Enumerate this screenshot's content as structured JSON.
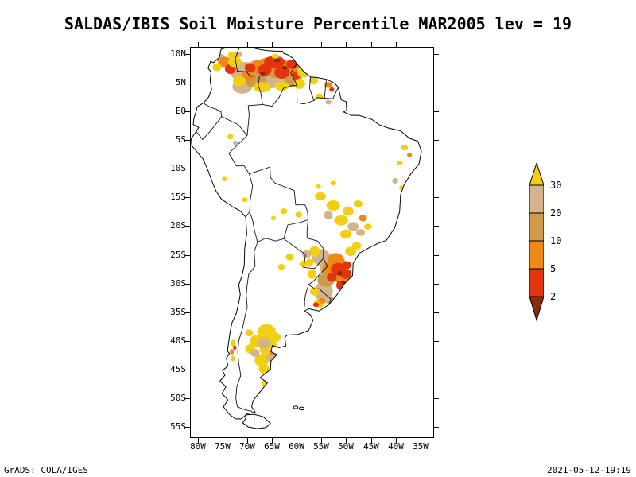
{
  "title": "SALDAS/IBIS Soil Moisture Percentile MAR2005 lev = 19",
  "footer": {
    "credit": "GrADS: COLA/IGES",
    "timestamp": "2021-05-12-19:19"
  },
  "axes": {
    "lat_ticks": [
      {
        "label": "10N",
        "deg": 10
      },
      {
        "label": "5N",
        "deg": 5
      },
      {
        "label": "EQ",
        "deg": 0
      },
      {
        "label": "5S",
        "deg": -5
      },
      {
        "label": "10S",
        "deg": -10
      },
      {
        "label": "15S",
        "deg": -15
      },
      {
        "label": "20S",
        "deg": -20
      },
      {
        "label": "25S",
        "deg": -25
      },
      {
        "label": "30S",
        "deg": -30
      },
      {
        "label": "35S",
        "deg": -35
      },
      {
        "label": "40S",
        "deg": -40
      },
      {
        "label": "45S",
        "deg": -45
      },
      {
        "label": "50S",
        "deg": -50
      },
      {
        "label": "55S",
        "deg": -55
      }
    ],
    "lon_ticks": [
      {
        "label": "80W",
        "deg": -80
      },
      {
        "label": "75W",
        "deg": -75
      },
      {
        "label": "70W",
        "deg": -70
      },
      {
        "label": "65W",
        "deg": -65
      },
      {
        "label": "60W",
        "deg": -60
      },
      {
        "label": "55W",
        "deg": -55
      },
      {
        "label": "50W",
        "deg": -50
      },
      {
        "label": "45W",
        "deg": -45
      },
      {
        "label": "40W",
        "deg": -40
      },
      {
        "label": "35W",
        "deg": -35
      }
    ]
  },
  "legend": {
    "boundary_labels": [
      "30",
      "20",
      "10",
      "5",
      "2"
    ],
    "colors": {
      "above30": "#f2cf12",
      "p20_30": "#d3b48c",
      "p10_20": "#cd9b4a",
      "p5_10": "#f08818",
      "p2_5": "#e4340e",
      "below2": "#8c2a0c"
    }
  },
  "map_patches": [
    [
      -66.5,
      6.5,
      5.0,
      2.6,
      "p20_30"
    ],
    [
      -62.0,
      6.3,
      3.2,
      2.2,
      "p20_30"
    ],
    [
      -70.5,
      6.8,
      2.8,
      1.8,
      "p20_30"
    ],
    [
      -71.0,
      4.3,
      2.0,
      1.2,
      "p20_30"
    ],
    [
      -71.8,
      9.9,
      0.9,
      0.5,
      "p20_30"
    ],
    [
      -75.6,
      9.4,
      1.1,
      0.7,
      "p20_30"
    ],
    [
      -64.0,
      7.5,
      3.0,
      1.7,
      "p10_20"
    ],
    [
      -68.5,
      5.6,
      2.4,
      1.4,
      "p10_20"
    ],
    [
      -60.8,
      5.5,
      1.6,
      1.2,
      "p10_20"
    ],
    [
      -65.5,
      8.2,
      2.4,
      1.2,
      "p5_10"
    ],
    [
      -61.5,
      7.5,
      1.9,
      1.4,
      "p5_10"
    ],
    [
      -67.8,
      7.8,
      1.5,
      1.1,
      "p5_10"
    ],
    [
      -69.8,
      6.2,
      1.3,
      0.9,
      "p5_10"
    ],
    [
      -74.5,
      8.6,
      1.4,
      0.9,
      "p5_10"
    ],
    [
      -64.5,
      8.6,
      2.1,
      1.1,
      "p2_5"
    ],
    [
      -63.0,
      6.8,
      1.5,
      1.1,
      "p2_5"
    ],
    [
      -66.5,
      7.2,
      1.4,
      1.0,
      "p2_5"
    ],
    [
      -61.0,
      8.2,
      1.1,
      0.8,
      "p2_5"
    ],
    [
      -69.4,
      7.6,
      1.1,
      0.8,
      "p2_5"
    ],
    [
      -60.1,
      6.3,
      0.9,
      0.7,
      "p2_5"
    ],
    [
      -73.4,
      7.4,
      1.1,
      0.9,
      "p2_5"
    ],
    [
      -64.0,
      8.9,
      0.6,
      0.35,
      "below2"
    ],
    [
      -62.4,
      7.6,
      0.5,
      0.35,
      "below2"
    ],
    [
      -66.9,
      6.6,
      0.5,
      0.35,
      "below2"
    ],
    [
      -72.5,
      8.6,
      1.4,
      0.9,
      "above30"
    ],
    [
      -58.6,
      7.0,
      1.4,
      1.1,
      "above30"
    ],
    [
      -59.4,
      4.8,
      1.1,
      0.9,
      "above30"
    ],
    [
      -67.0,
      4.2,
      1.8,
      0.9,
      "above30"
    ],
    [
      -71.6,
      5.3,
      1.3,
      0.9,
      "above30"
    ],
    [
      -63.0,
      4.4,
      1.4,
      0.8,
      "above30"
    ],
    [
      -56.6,
      5.4,
      0.9,
      0.7,
      "above30"
    ],
    [
      -76.1,
      7.7,
      0.9,
      0.7,
      "above30"
    ],
    [
      -73.0,
      9.8,
      0.9,
      0.6,
      "above30"
    ],
    [
      -64.3,
      9.6,
      0.8,
      0.4,
      "above30"
    ],
    [
      -53.6,
      4.6,
      0.8,
      0.5,
      "p5_10"
    ],
    [
      -52.9,
      3.8,
      0.5,
      0.4,
      "p2_5"
    ],
    [
      -55.4,
      2.6,
      0.8,
      0.5,
      "above30"
    ],
    [
      -53.6,
      1.6,
      0.6,
      0.4,
      "p20_30"
    ],
    [
      -73.4,
      -4.4,
      0.6,
      0.5,
      "above30"
    ],
    [
      -72.4,
      -5.5,
      0.5,
      0.4,
      "p20_30"
    ],
    [
      -74.6,
      -11.8,
      0.5,
      0.4,
      "above30"
    ],
    [
      -70.5,
      -15.4,
      0.6,
      0.4,
      "above30"
    ],
    [
      -38.2,
      -6.3,
      0.7,
      0.5,
      "above30"
    ],
    [
      -37.2,
      -7.6,
      0.5,
      0.4,
      "p5_10"
    ],
    [
      -39.2,
      -9.0,
      0.6,
      0.4,
      "above30"
    ],
    [
      -40.1,
      -12.1,
      0.6,
      0.5,
      "p20_30"
    ],
    [
      -38.8,
      -13.3,
      0.5,
      0.4,
      "above30"
    ],
    [
      -59.6,
      -18.0,
      0.7,
      0.5,
      "above30"
    ],
    [
      -62.6,
      -17.4,
      0.7,
      0.5,
      "above30"
    ],
    [
      -64.7,
      -18.6,
      0.5,
      0.4,
      "above30"
    ],
    [
      -55.2,
      -14.8,
      1.1,
      0.7,
      "above30"
    ],
    [
      -52.6,
      -16.4,
      1.4,
      0.9,
      "above30"
    ],
    [
      -49.6,
      -17.4,
      1.1,
      0.8,
      "above30"
    ],
    [
      -47.6,
      -16.1,
      0.9,
      0.6,
      "above30"
    ],
    [
      -51.0,
      -19.0,
      1.4,
      0.9,
      "above30"
    ],
    [
      -48.6,
      -20.1,
      1.1,
      0.8,
      "p20_30"
    ],
    [
      -46.6,
      -18.6,
      0.8,
      0.6,
      "p5_10"
    ],
    [
      -53.6,
      -18.1,
      0.9,
      0.7,
      "p20_30"
    ],
    [
      -50.1,
      -21.4,
      1.1,
      0.8,
      "above30"
    ],
    [
      -47.1,
      -21.1,
      0.9,
      0.6,
      "p20_30"
    ],
    [
      -45.6,
      -20.1,
      0.8,
      0.5,
      "above30"
    ],
    [
      -52.6,
      -12.5,
      0.6,
      0.4,
      "above30"
    ],
    [
      -55.6,
      -13.1,
      0.5,
      0.4,
      "above30"
    ],
    [
      -52.6,
      -27.0,
      2.8,
      2.1,
      "p20_30"
    ],
    [
      -55.1,
      -25.4,
      1.9,
      1.4,
      "p20_30"
    ],
    [
      -54.6,
      -31.4,
      1.9,
      1.7,
      "p20_30"
    ],
    [
      -51.6,
      -28.4,
      1.9,
      1.4,
      "p10_20"
    ],
    [
      -54.1,
      -29.4,
      1.7,
      1.2,
      "p10_20"
    ],
    [
      -52.1,
      -25.9,
      1.7,
      1.2,
      "p5_10"
    ],
    [
      -50.6,
      -29.4,
      1.4,
      1.1,
      "p5_10"
    ],
    [
      -53.6,
      -27.4,
      1.2,
      1.0,
      "p5_10"
    ],
    [
      -51.6,
      -27.5,
      1.5,
      1.1,
      "p2_5"
    ],
    [
      -50.1,
      -28.3,
      1.2,
      0.9,
      "p2_5"
    ],
    [
      -52.9,
      -28.9,
      1.0,
      0.8,
      "p2_5"
    ],
    [
      -51.1,
      -30.3,
      0.9,
      0.8,
      "p2_5"
    ],
    [
      -49.9,
      -26.8,
      0.9,
      0.7,
      "p2_5"
    ],
    [
      -51.3,
      -28.2,
      0.5,
      0.4,
      "below2"
    ],
    [
      -50.6,
      -29.8,
      0.4,
      0.35,
      "below2"
    ],
    [
      -56.4,
      -24.4,
      1.1,
      0.9,
      "above30"
    ],
    [
      -49.1,
      -24.4,
      1.1,
      0.8,
      "above30"
    ],
    [
      -47.9,
      -23.4,
      0.9,
      0.7,
      "above30"
    ],
    [
      -56.9,
      -28.4,
      0.9,
      0.8,
      "above30"
    ],
    [
      -57.4,
      -26.4,
      0.8,
      0.7,
      "above30"
    ],
    [
      -55.4,
      -33.4,
      1.1,
      0.8,
      "above30"
    ],
    [
      -53.6,
      -32.7,
      1.1,
      0.8,
      "p20_30"
    ],
    [
      -56.4,
      -31.4,
      0.9,
      0.7,
      "above30"
    ],
    [
      -56.1,
      -33.7,
      0.6,
      0.4,
      "p2_5"
    ],
    [
      -54.9,
      -33.0,
      0.7,
      0.5,
      "p5_10"
    ],
    [
      -58.0,
      -24.9,
      0.9,
      0.7,
      "p20_30"
    ],
    [
      -58.6,
      -26.6,
      0.8,
      0.6,
      "above30"
    ],
    [
      -61.4,
      -25.4,
      0.8,
      0.6,
      "above30"
    ],
    [
      -63.1,
      -27.1,
      0.7,
      0.5,
      "above30"
    ],
    [
      -66.1,
      -38.4,
      1.9,
      1.3,
      "above30"
    ],
    [
      -68.1,
      -40.1,
      1.4,
      1.1,
      "above30"
    ],
    [
      -65.6,
      -41.4,
      1.9,
      1.4,
      "above30"
    ],
    [
      -67.1,
      -43.4,
      1.4,
      1.1,
      "above30"
    ],
    [
      -64.6,
      -39.4,
      1.4,
      0.9,
      "above30"
    ],
    [
      -69.4,
      -41.4,
      1.0,
      0.8,
      "above30"
    ],
    [
      -66.6,
      -44.9,
      1.1,
      0.8,
      "above30"
    ],
    [
      -69.6,
      -38.6,
      0.8,
      0.6,
      "above30"
    ],
    [
      -66.6,
      -40.4,
      1.4,
      0.9,
      "p20_30"
    ],
    [
      -65.1,
      -42.9,
      1.1,
      0.8,
      "p20_30"
    ],
    [
      -68.4,
      -42.1,
      0.9,
      0.7,
      "p20_30"
    ],
    [
      -64.9,
      -42.2,
      0.6,
      0.4,
      "p5_10"
    ],
    [
      -63.6,
      -43.8,
      0.5,
      0.4,
      "p2_5"
    ],
    [
      -66.4,
      -47.4,
      0.8,
      0.5,
      "above30"
    ],
    [
      -72.8,
      -40.4,
      0.5,
      0.6,
      "above30"
    ],
    [
      -73.1,
      -41.9,
      0.4,
      0.5,
      "p5_10"
    ],
    [
      -72.5,
      -41.2,
      0.35,
      0.4,
      "p2_5"
    ],
    [
      -72.9,
      -43.1,
      0.4,
      0.5,
      "above30"
    ]
  ]
}
